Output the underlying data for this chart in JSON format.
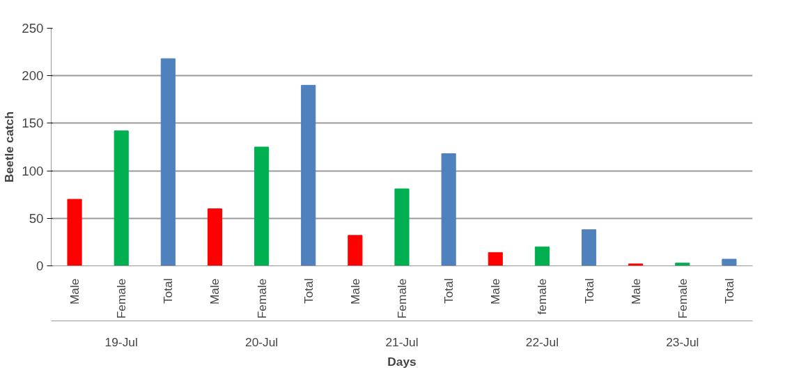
{
  "chart_data": {
    "type": "bar",
    "xlabel": "Days",
    "ylabel": "Beetle catch",
    "categories": [
      "Male",
      "Female",
      "Total",
      "Male",
      "Female",
      "Total",
      "Male",
      "Female",
      "Total",
      "Male",
      "female",
      "Total",
      "Male",
      "Female",
      "Total"
    ],
    "values": [
      70,
      142,
      218,
      60,
      125,
      190,
      32,
      81,
      118,
      14,
      20,
      38,
      2,
      3,
      7
    ],
    "colors": [
      "#ff0000",
      "#00b050",
      "#4f81bd",
      "#ff0000",
      "#00b050",
      "#4f81bd",
      "#ff0000",
      "#00b050",
      "#4f81bd",
      "#ff0000",
      "#00b050",
      "#4f81bd",
      "#ff0000",
      "#00b050",
      "#4f81bd"
    ],
    "annotations": [
      "19-Jul",
      "20-Jul",
      "21-Jul",
      "22-Jul",
      "23-Jul"
    ],
    "ylim": [
      0,
      250
    ],
    "yticks": [
      0,
      50,
      100,
      150,
      200,
      250
    ],
    "grid": "y"
  }
}
